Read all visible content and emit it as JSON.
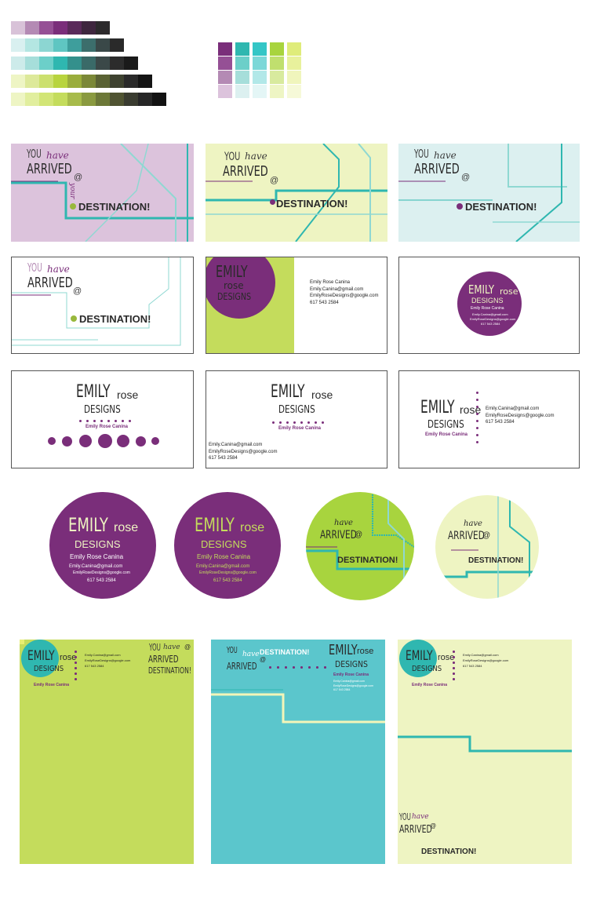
{
  "colors": {
    "purple": "#7a2e7a",
    "teal": "#2fb7b0",
    "lime": "#c4dc5c",
    "pale_yellow": "#eef4c2",
    "pale_blue": "#dcf0f0",
    "lavender": "#dcc3dc",
    "pale_lime": "#eef5c4"
  },
  "palettes": {
    "gradients": [
      [
        "#d8c2d8",
        "#b48ab4",
        "#955095",
        "#7a2e7a",
        "#5a2a5a",
        "#3e263e",
        "#2c2a2c"
      ],
      [
        "#d9f0f0",
        "#b4e6e2",
        "#8cd6d2",
        "#5fc6c2",
        "#3e9e9c",
        "#3c6e6c",
        "#3a4848",
        "#2a2a2a"
      ],
      [
        "#cdebea",
        "#a6deda",
        "#6ccfc9",
        "#2fb7b0",
        "#34908c",
        "#3a6a68",
        "#3b4848",
        "#2c2c2c",
        "#1a1a1a"
      ],
      [
        "#eef5c4",
        "#dde99a",
        "#cce06e",
        "#b8d43e",
        "#9aad3c",
        "#7b8838",
        "#5a6234",
        "#3e4230",
        "#2a2a2a",
        "#141414"
      ],
      [
        "#eef5c4",
        "#e1ee9e",
        "#d2e576",
        "#c4dc5c",
        "#a7bb4b",
        "#8a9a40",
        "#6c7838",
        "#505432",
        "#3a3c30",
        "#262626",
        "#121212"
      ]
    ],
    "grid_columns": [
      [
        "#7a2e7a",
        "#955095",
        "#b48ab4",
        "#dcc3dc"
      ],
      [
        "#2fb7b0",
        "#6ccfc9",
        "#a6deda",
        "#dcf0f0"
      ],
      [
        "#34c6c6",
        "#7cd8d8",
        "#b2e8e8",
        "#e4f6f6"
      ],
      [
        "#a8d43e",
        "#c0df6e",
        "#d8ea9e",
        "#eef5c4"
      ],
      [
        "#dfec7a",
        "#e8f19c",
        "#f0f5bc",
        "#f6f9d8"
      ]
    ]
  },
  "tagline": {
    "you": "YOU",
    "have": "have",
    "arrived": "ARRIVED",
    "at": "@",
    "your": "your",
    "destination": "DESTINATION!"
  },
  "brand": {
    "emily": "EMILY",
    "rose": "rose",
    "designs": "DESIGNS",
    "name": "Emily Rose Canina",
    "email_short": "Emily.Canina@gmail.com",
    "email_cap": "Emily.Canina@gmail.com",
    "email_design": "EmilyRoseDesigns@google.com",
    "phone": "617 543 2584"
  }
}
